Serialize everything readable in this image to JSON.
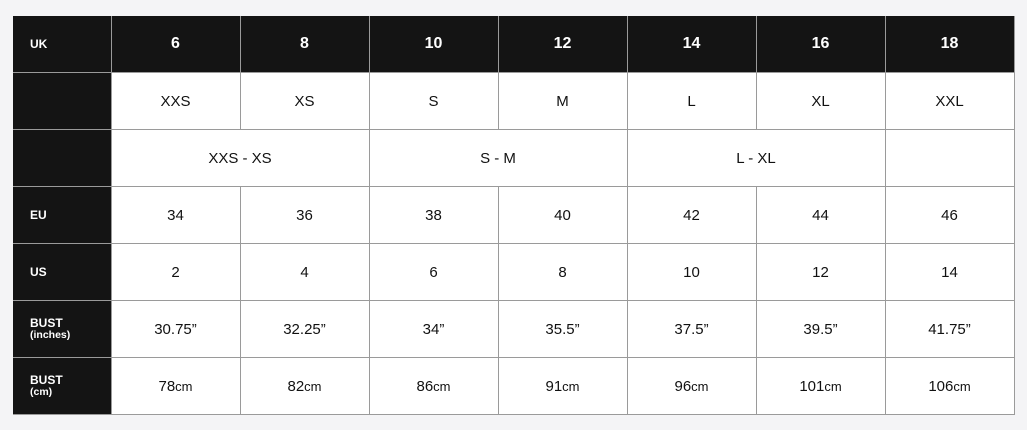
{
  "header": {
    "label": "UK",
    "sizes": [
      "6",
      "8",
      "10",
      "12",
      "14",
      "16",
      "18"
    ]
  },
  "letter_sizes": [
    "XXS",
    "XS",
    "S",
    "M",
    "L",
    "XL",
    "XXL"
  ],
  "grouped_sizes": [
    "XXS - XS",
    "S - M",
    "L - XL",
    ""
  ],
  "eu": {
    "label": "EU",
    "values": [
      "34",
      "36",
      "38",
      "40",
      "42",
      "44",
      "46"
    ]
  },
  "us": {
    "label": "US",
    "values": [
      "2",
      "4",
      "6",
      "8",
      "10",
      "12",
      "14"
    ]
  },
  "bust_inches": {
    "label": "BUST",
    "unit": "(inches)",
    "values": [
      "30.75”",
      "32.25”",
      "34”",
      "35.5”",
      "37.5”",
      "39.5”",
      "41.75”"
    ]
  },
  "bust_cm": {
    "label": "BUST",
    "unit": "(cm)",
    "values": [
      "78",
      "82",
      "86",
      "91",
      "96",
      "101",
      "106"
    ],
    "suffix": "cm"
  }
}
